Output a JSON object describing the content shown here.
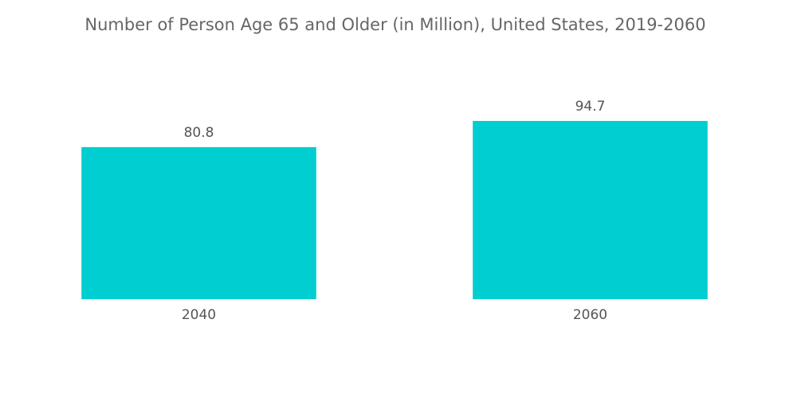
{
  "chart_data": {
    "type": "bar",
    "title": "Number of Person Age 65 and Older (in Million), United States, 2019-2060",
    "categories": [
      "2040",
      "2060"
    ],
    "values": [
      80.8,
      94.7
    ],
    "color": "#00ced1"
  }
}
